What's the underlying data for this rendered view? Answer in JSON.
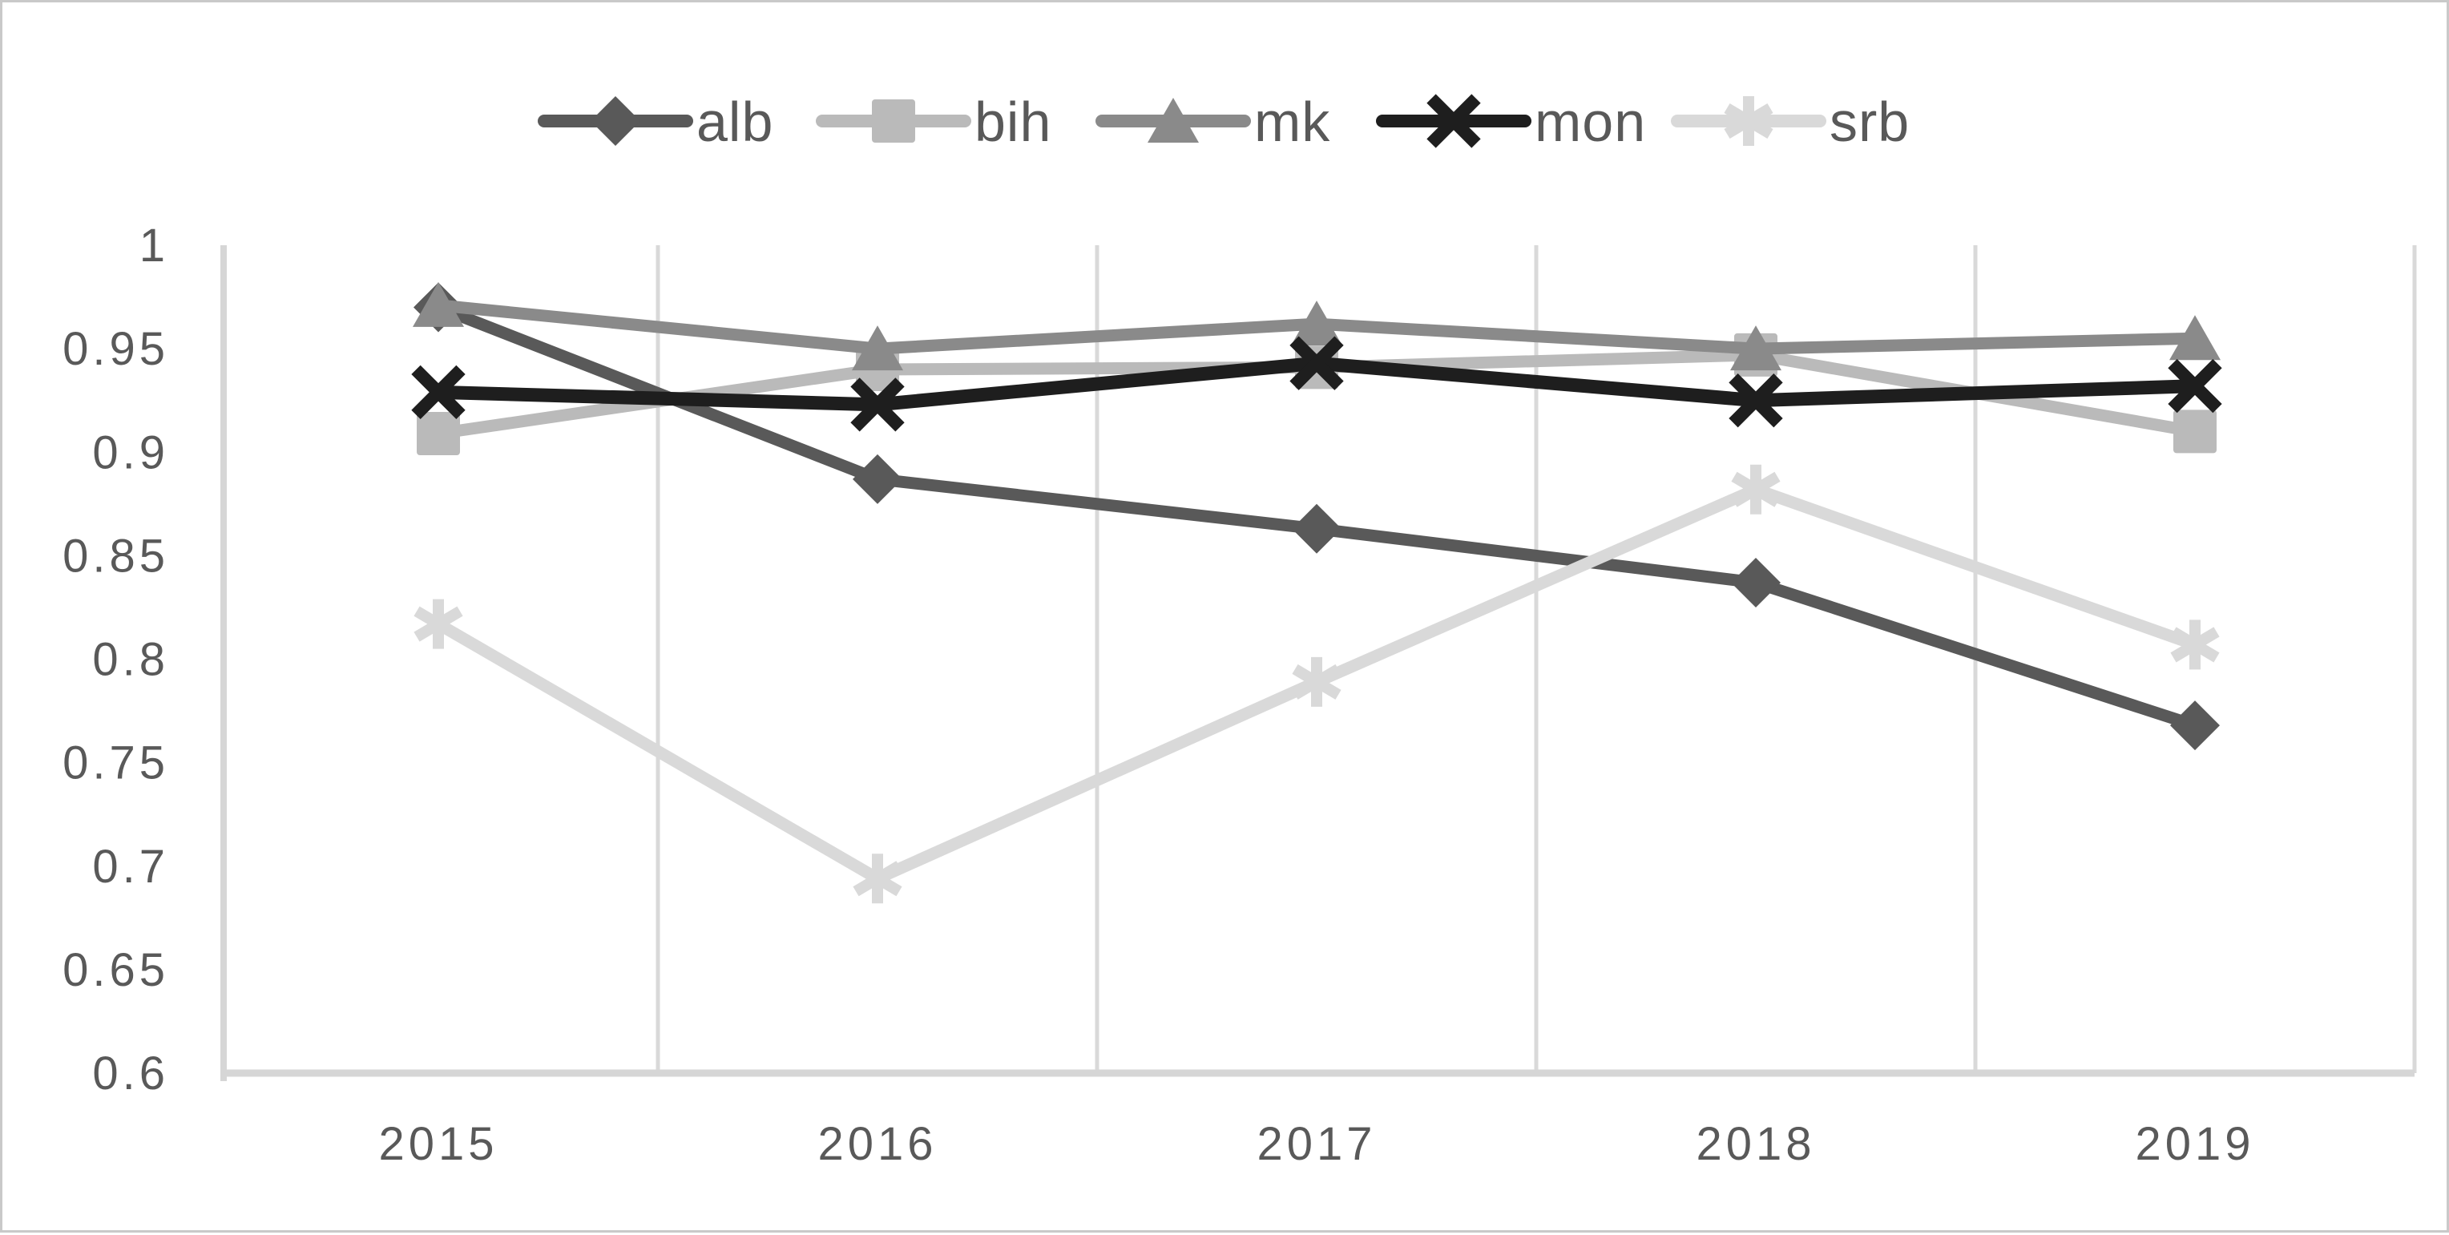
{
  "chart_data": {
    "type": "line",
    "title": "",
    "categories": [
      "2015",
      "2016",
      "2017",
      "2018",
      "2019"
    ],
    "series": [
      {
        "name": "alb",
        "marker": "diamond",
        "color": "#595959",
        "values": [
          0.97,
          0.887,
          0.863,
          0.837,
          0.768
        ]
      },
      {
        "name": "bih",
        "marker": "square",
        "color": "#bababa",
        "values": [
          0.909,
          0.94,
          0.941,
          0.947,
          0.91
        ]
      },
      {
        "name": "mk",
        "marker": "triangle",
        "color": "#8a8a8a",
        "values": [
          0.971,
          0.95,
          0.962,
          0.95,
          0.955
        ]
      },
      {
        "name": "mon",
        "marker": "x",
        "color": "#1e1e1e",
        "values": [
          0.929,
          0.923,
          0.943,
          0.925,
          0.932
        ]
      },
      {
        "name": "srb",
        "marker": "asterisk",
        "color": "#d9d9d9",
        "values": [
          0.817,
          0.694,
          0.789,
          0.882,
          0.807
        ]
      }
    ],
    "xlabel": "",
    "ylabel": "",
    "ylim": [
      0.6,
      1.0
    ],
    "ytick_step": 0.05,
    "yticks": [
      "1",
      "0.95",
      "0.9",
      "0.85",
      "0.8",
      "0.75",
      "0.7",
      "0.65",
      "0.6"
    ],
    "grid": "vertical-only",
    "legend_position": "top-center"
  },
  "colors": {
    "grid": "#d9d9d9",
    "axis": "#d6d6d6",
    "tick_text": "#595959",
    "background": "#ffffff",
    "border": "#c9c9c9"
  }
}
